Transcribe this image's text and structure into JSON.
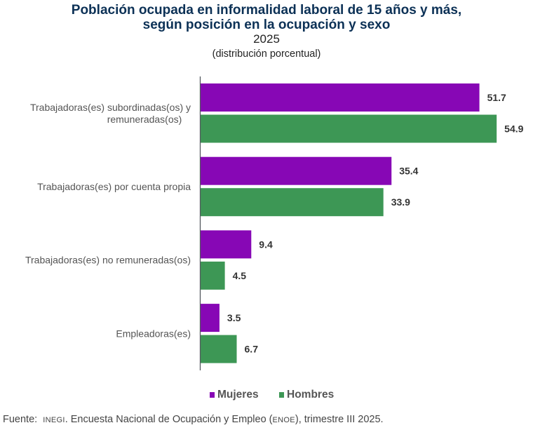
{
  "title_line1": "Población ocupada en informalidad laboral de 15 años y más,",
  "title_line2": "según posición en la ocupación y sexo",
  "year": "2025",
  "subtitle": "(distribución porcentual)",
  "colors": {
    "mujeres": "#8707B5",
    "hombres": "#3D9755",
    "axis": "#555A60",
    "title": "#0C3156"
  },
  "chart_data": {
    "type": "bar",
    "orientation": "horizontal",
    "title": "Población ocupada en informalidad laboral de 15 años y más, según posición en la ocupación y sexo",
    "subtitle": "2025 (distribución porcentual)",
    "categories": [
      [
        "Trabajadoras(es) subordinadas(os) y",
        "remuneradas(os)"
      ],
      [
        "Trabajadoras(es) por cuenta propia"
      ],
      [
        "Trabajadoras(es) no remuneradas(os)"
      ],
      [
        "Empleadoras(es)"
      ]
    ],
    "series": [
      {
        "name": "Mujeres",
        "color": "#8707B5",
        "values": [
          51.7,
          35.4,
          9.4,
          3.5
        ],
        "labels": [
          "51.7",
          "35.4",
          "9.4",
          "3.5"
        ]
      },
      {
        "name": "Hombres",
        "color": "#3D9755",
        "values": [
          54.9,
          33.9,
          4.5,
          6.7
        ],
        "labels": [
          "54.9",
          "33.9",
          "4.5",
          "6.7"
        ]
      }
    ],
    "xlim": [
      0,
      60
    ],
    "grid": false,
    "legend_position": "bottom"
  },
  "legend": {
    "mujeres": "Mujeres",
    "hombres": "Hombres"
  },
  "footer": {
    "prefix": "Fuente:",
    "org": "INEGI",
    "text1": ". Encuesta Nacional de Ocupación y Empleo (",
    "survey": "ENOE",
    "text2": "), trimestre III 2025."
  }
}
